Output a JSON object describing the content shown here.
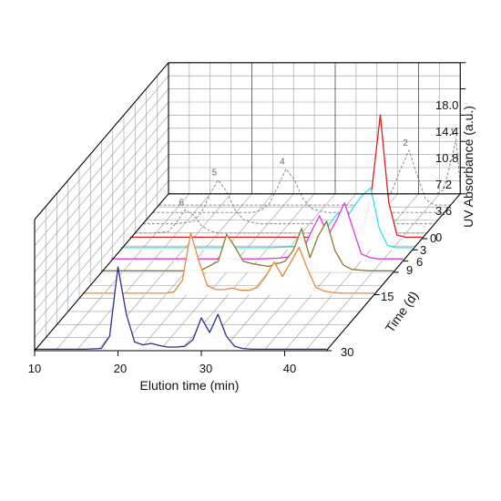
{
  "chart_data": {
    "type": "line",
    "subtype": "3d-waterfall",
    "title": "",
    "xlabel": "Elution time (min)",
    "ylabel": "Time (d)",
    "zlabel": "UV Absorbance (a.u.)",
    "xlim": [
      10,
      45
    ],
    "ylim": [
      0,
      30
    ],
    "zlim": [
      0,
      18
    ],
    "x_ticks": [
      "10",
      "20",
      "30",
      "40"
    ],
    "y_ticks": [
      "0",
      "3",
      "6",
      "9",
      "15",
      "30"
    ],
    "z_ticks": [
      "0",
      "3.6",
      "7.2",
      "10.8",
      "14.4",
      "18.0"
    ],
    "grid": true,
    "legend": "none",
    "series": [
      {
        "day": 0,
        "color": "#e8191b",
        "style": "solid",
        "x": [
          10,
          12,
          14,
          16,
          18,
          20,
          22,
          24,
          26,
          28,
          30,
          32,
          34,
          36,
          37,
          38,
          39,
          40,
          41,
          42,
          43,
          44,
          45
        ],
        "y": [
          0.2,
          0.2,
          0.2,
          0.2,
          0.2,
          0.2,
          0.2,
          0.2,
          0.2,
          0.2,
          0.2,
          0.2,
          0.2,
          0.2,
          0.4,
          1.5,
          7,
          17,
          5,
          0.5,
          0.2,
          0.2,
          0.2
        ]
      },
      {
        "day": 3,
        "color": "#29e6f0",
        "style": "solid",
        "x": [
          10,
          12,
          14,
          16,
          18,
          20,
          22,
          24,
          26,
          28,
          30,
          32,
          34,
          35,
          36,
          37,
          38,
          39,
          40,
          41,
          42,
          43,
          44,
          45
        ],
        "y": [
          0.3,
          0.3,
          0.3,
          0.3,
          0.3,
          0.3,
          0.3,
          0.3,
          0.3,
          0.3,
          0.4,
          0.4,
          1.5,
          3.5,
          5,
          4.2,
          6,
          7.5,
          8.5,
          3,
          0.6,
          0.3,
          0.3,
          0.3
        ]
      },
      {
        "day": 6,
        "color": "#e535e5",
        "style": "solid",
        "x": [
          10,
          12,
          14,
          16,
          18,
          20,
          22,
          24,
          26,
          28,
          30,
          32,
          33,
          34,
          35,
          36,
          37,
          38,
          39,
          40,
          41,
          42,
          43,
          44,
          45
        ],
        "y": [
          0.3,
          0.3,
          0.3,
          0.3,
          0.3,
          0.3,
          0.3,
          0.3,
          0.3,
          0.3,
          0.4,
          0.6,
          1.5,
          4,
          6.2,
          3.5,
          5.5,
          8,
          4.5,
          1,
          0.5,
          0.3,
          0.3,
          0.3,
          0.3
        ]
      },
      {
        "day": 9,
        "color": "#8b7a2a",
        "style": "solid",
        "x": [
          10,
          12,
          14,
          16,
          18,
          20,
          22,
          24,
          25,
          26,
          27,
          28,
          30,
          32,
          33,
          34,
          35,
          36,
          37,
          38,
          39,
          40,
          41,
          42,
          43,
          44,
          45
        ],
        "y": [
          0.2,
          0.2,
          0.2,
          0.2,
          0.2,
          0.2,
          0.3,
          1.5,
          5.2,
          3.5,
          1.5,
          1.2,
          0.8,
          1.5,
          3,
          6,
          2,
          5,
          7,
          3,
          1,
          0.4,
          0.3,
          0.2,
          0.2,
          0.2,
          0.2
        ]
      },
      {
        "day": 15,
        "color": "#f0873a",
        "style": "solid",
        "x": [
          10,
          12,
          14,
          16,
          18,
          20,
          21,
          22,
          23,
          24,
          25,
          26,
          27,
          28,
          29,
          30,
          31,
          32,
          33,
          34,
          35,
          36,
          37,
          38,
          39,
          40,
          41,
          42,
          43,
          44,
          45
        ],
        "y": [
          0.2,
          0.2,
          0.2,
          0.2,
          0.2,
          0.2,
          0.4,
          2,
          8.5,
          4.5,
          1.2,
          0.7,
          0.7,
          0.9,
          0.6,
          0.6,
          1,
          2.5,
          4.5,
          2.5,
          4.5,
          6.5,
          3.5,
          1,
          0.5,
          0.3,
          0.2,
          0.2,
          0.2,
          0.2,
          0.2
        ]
      },
      {
        "day": 30,
        "color": "#2e2e8c",
        "style": "solid",
        "x": [
          10,
          12,
          14,
          16,
          18,
          19,
          20,
          21,
          22,
          23,
          24,
          25,
          26,
          27,
          28,
          29,
          30,
          31,
          32,
          33,
          34,
          35,
          36,
          37,
          38,
          39,
          40,
          41,
          42,
          43,
          44,
          45
        ],
        "y": [
          0.2,
          0.2,
          0.2,
          0.2,
          0.3,
          2,
          11.5,
          5,
          1.2,
          0.8,
          1,
          0.7,
          0.5,
          0.5,
          0.6,
          1.5,
          4.5,
          2.5,
          5,
          2,
          0.6,
          0.3,
          0.2,
          0.2,
          0.2,
          0.2,
          0.2,
          0.2,
          0.2,
          0.2,
          0.2,
          0.2
        ]
      },
      {
        "day": -12,
        "color": "#8a8a8a",
        "style": "dashed",
        "peak_label": "1",
        "x": [
          10,
          12,
          14,
          16,
          18,
          20,
          22,
          24,
          26,
          28,
          30,
          32,
          34,
          36,
          38,
          40,
          42,
          43,
          44,
          44.5,
          45
        ],
        "y": [
          0,
          0,
          0,
          0,
          0,
          0,
          0,
          0,
          0,
          0,
          0,
          0,
          0,
          0,
          0,
          0,
          0,
          0.5,
          5,
          7.5,
          1
        ]
      },
      {
        "day": -9,
        "color": "#8a8a8a",
        "style": "dashed",
        "peak_label": "2",
        "x": [
          10,
          12,
          14,
          16,
          18,
          20,
          22,
          24,
          26,
          28,
          30,
          32,
          34,
          36,
          37,
          38,
          39,
          40,
          41,
          42,
          43,
          45
        ],
        "y": [
          0,
          0,
          0,
          0,
          0,
          0,
          0,
          0,
          0,
          0,
          0,
          0,
          0,
          0,
          0.3,
          2,
          5,
          7.5,
          4,
          0.8,
          0,
          0
        ]
      },
      {
        "day": -7,
        "color": "#8a8a8a",
        "style": "dashed",
        "peak_label": "4",
        "x": [
          10,
          14,
          18,
          20,
          22,
          23,
          24,
          25,
          26,
          27,
          28,
          29,
          30,
          31,
          32,
          34,
          36,
          40,
          45
        ],
        "y": [
          0,
          0,
          0,
          0,
          0,
          0.3,
          1.2,
          3.5,
          6,
          4.5,
          2,
          0.6,
          0.2,
          0,
          0,
          0,
          0,
          0,
          0
        ]
      },
      {
        "day": -4,
        "color": "#8a8a8a",
        "style": "dashed",
        "peak_label": "5",
        "x": [
          10,
          12,
          14,
          16,
          17,
          18,
          19,
          20,
          21,
          22,
          23,
          24,
          25,
          26,
          28,
          30,
          35,
          40,
          45
        ],
        "y": [
          0,
          0,
          0,
          0.3,
          1.5,
          4,
          6,
          4.5,
          2,
          0.6,
          0.2,
          0,
          0,
          0,
          0,
          0,
          0,
          0,
          0
        ]
      },
      {
        "day": -1.5,
        "color": "#8a8a8a",
        "style": "dashed",
        "peak_label": "6",
        "x": [
          10,
          12,
          14,
          15,
          16,
          17,
          18,
          19,
          20,
          22,
          25,
          30,
          35,
          40,
          45
        ],
        "y": [
          0,
          0,
          0.2,
          1.5,
          3.2,
          2.5,
          1,
          0.3,
          0,
          0,
          0,
          0,
          0,
          0,
          0
        ]
      }
    ]
  }
}
